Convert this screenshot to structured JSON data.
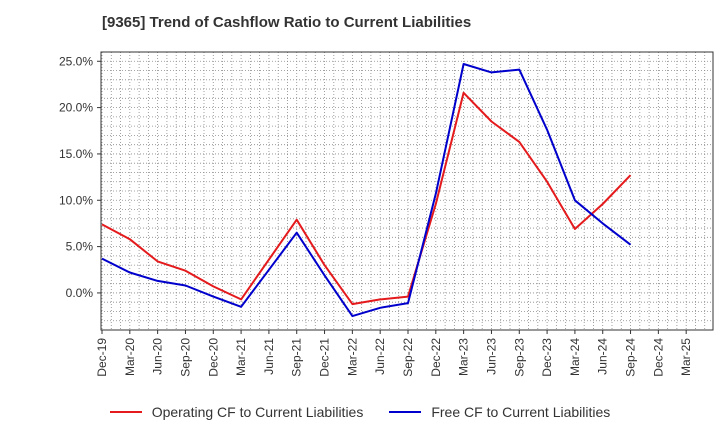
{
  "chart_data": {
    "type": "line",
    "title": "[9365]  Trend of Cashflow Ratio to Current Liabilities",
    "xlabel": "",
    "ylabel": "",
    "ylim": [
      -4,
      26
    ],
    "yticks": [
      "25.0%",
      "20.0%",
      "15.0%",
      "10.0%",
      "5.0%",
      "0.0%"
    ],
    "ytick_values": [
      25,
      20,
      15,
      10,
      5,
      0
    ],
    "grid": true,
    "legend_position": "bottom",
    "categories": [
      "Dec-19",
      "Mar-20",
      "Jun-20",
      "Sep-20",
      "Dec-20",
      "Mar-21",
      "Jun-21",
      "Sep-21",
      "Dec-21",
      "Mar-22",
      "Jun-22",
      "Sep-22",
      "Dec-22",
      "Mar-23",
      "Jun-23",
      "Sep-23",
      "Dec-23",
      "Mar-24",
      "Jun-24",
      "Sep-24",
      "Dec-24",
      "Mar-25"
    ],
    "series": [
      {
        "name": "Operating CF to Current Liabilities",
        "color": "#e41a1c",
        "values": [
          7.4,
          5.8,
          3.4,
          2.4,
          0.7,
          -0.7,
          3.6,
          7.9,
          3.0,
          -1.2,
          -0.7,
          -0.4,
          9.6,
          21.6,
          18.5,
          16.3,
          12.0,
          6.9,
          9.6,
          12.7,
          null,
          null
        ]
      },
      {
        "name": "Free CF to Current Liabilities",
        "color": "#0000cc",
        "values": [
          3.7,
          2.2,
          1.3,
          0.8,
          -0.4,
          -1.5,
          2.5,
          6.5,
          1.9,
          -2.5,
          -1.6,
          -1.1,
          10.7,
          24.7,
          23.8,
          24.1,
          17.6,
          10.0,
          7.5,
          5.2,
          null,
          null
        ]
      }
    ]
  },
  "legend": {
    "series_0_label": "Operating CF to Current Liabilities",
    "series_1_label": "Free CF to Current Liabilities"
  }
}
